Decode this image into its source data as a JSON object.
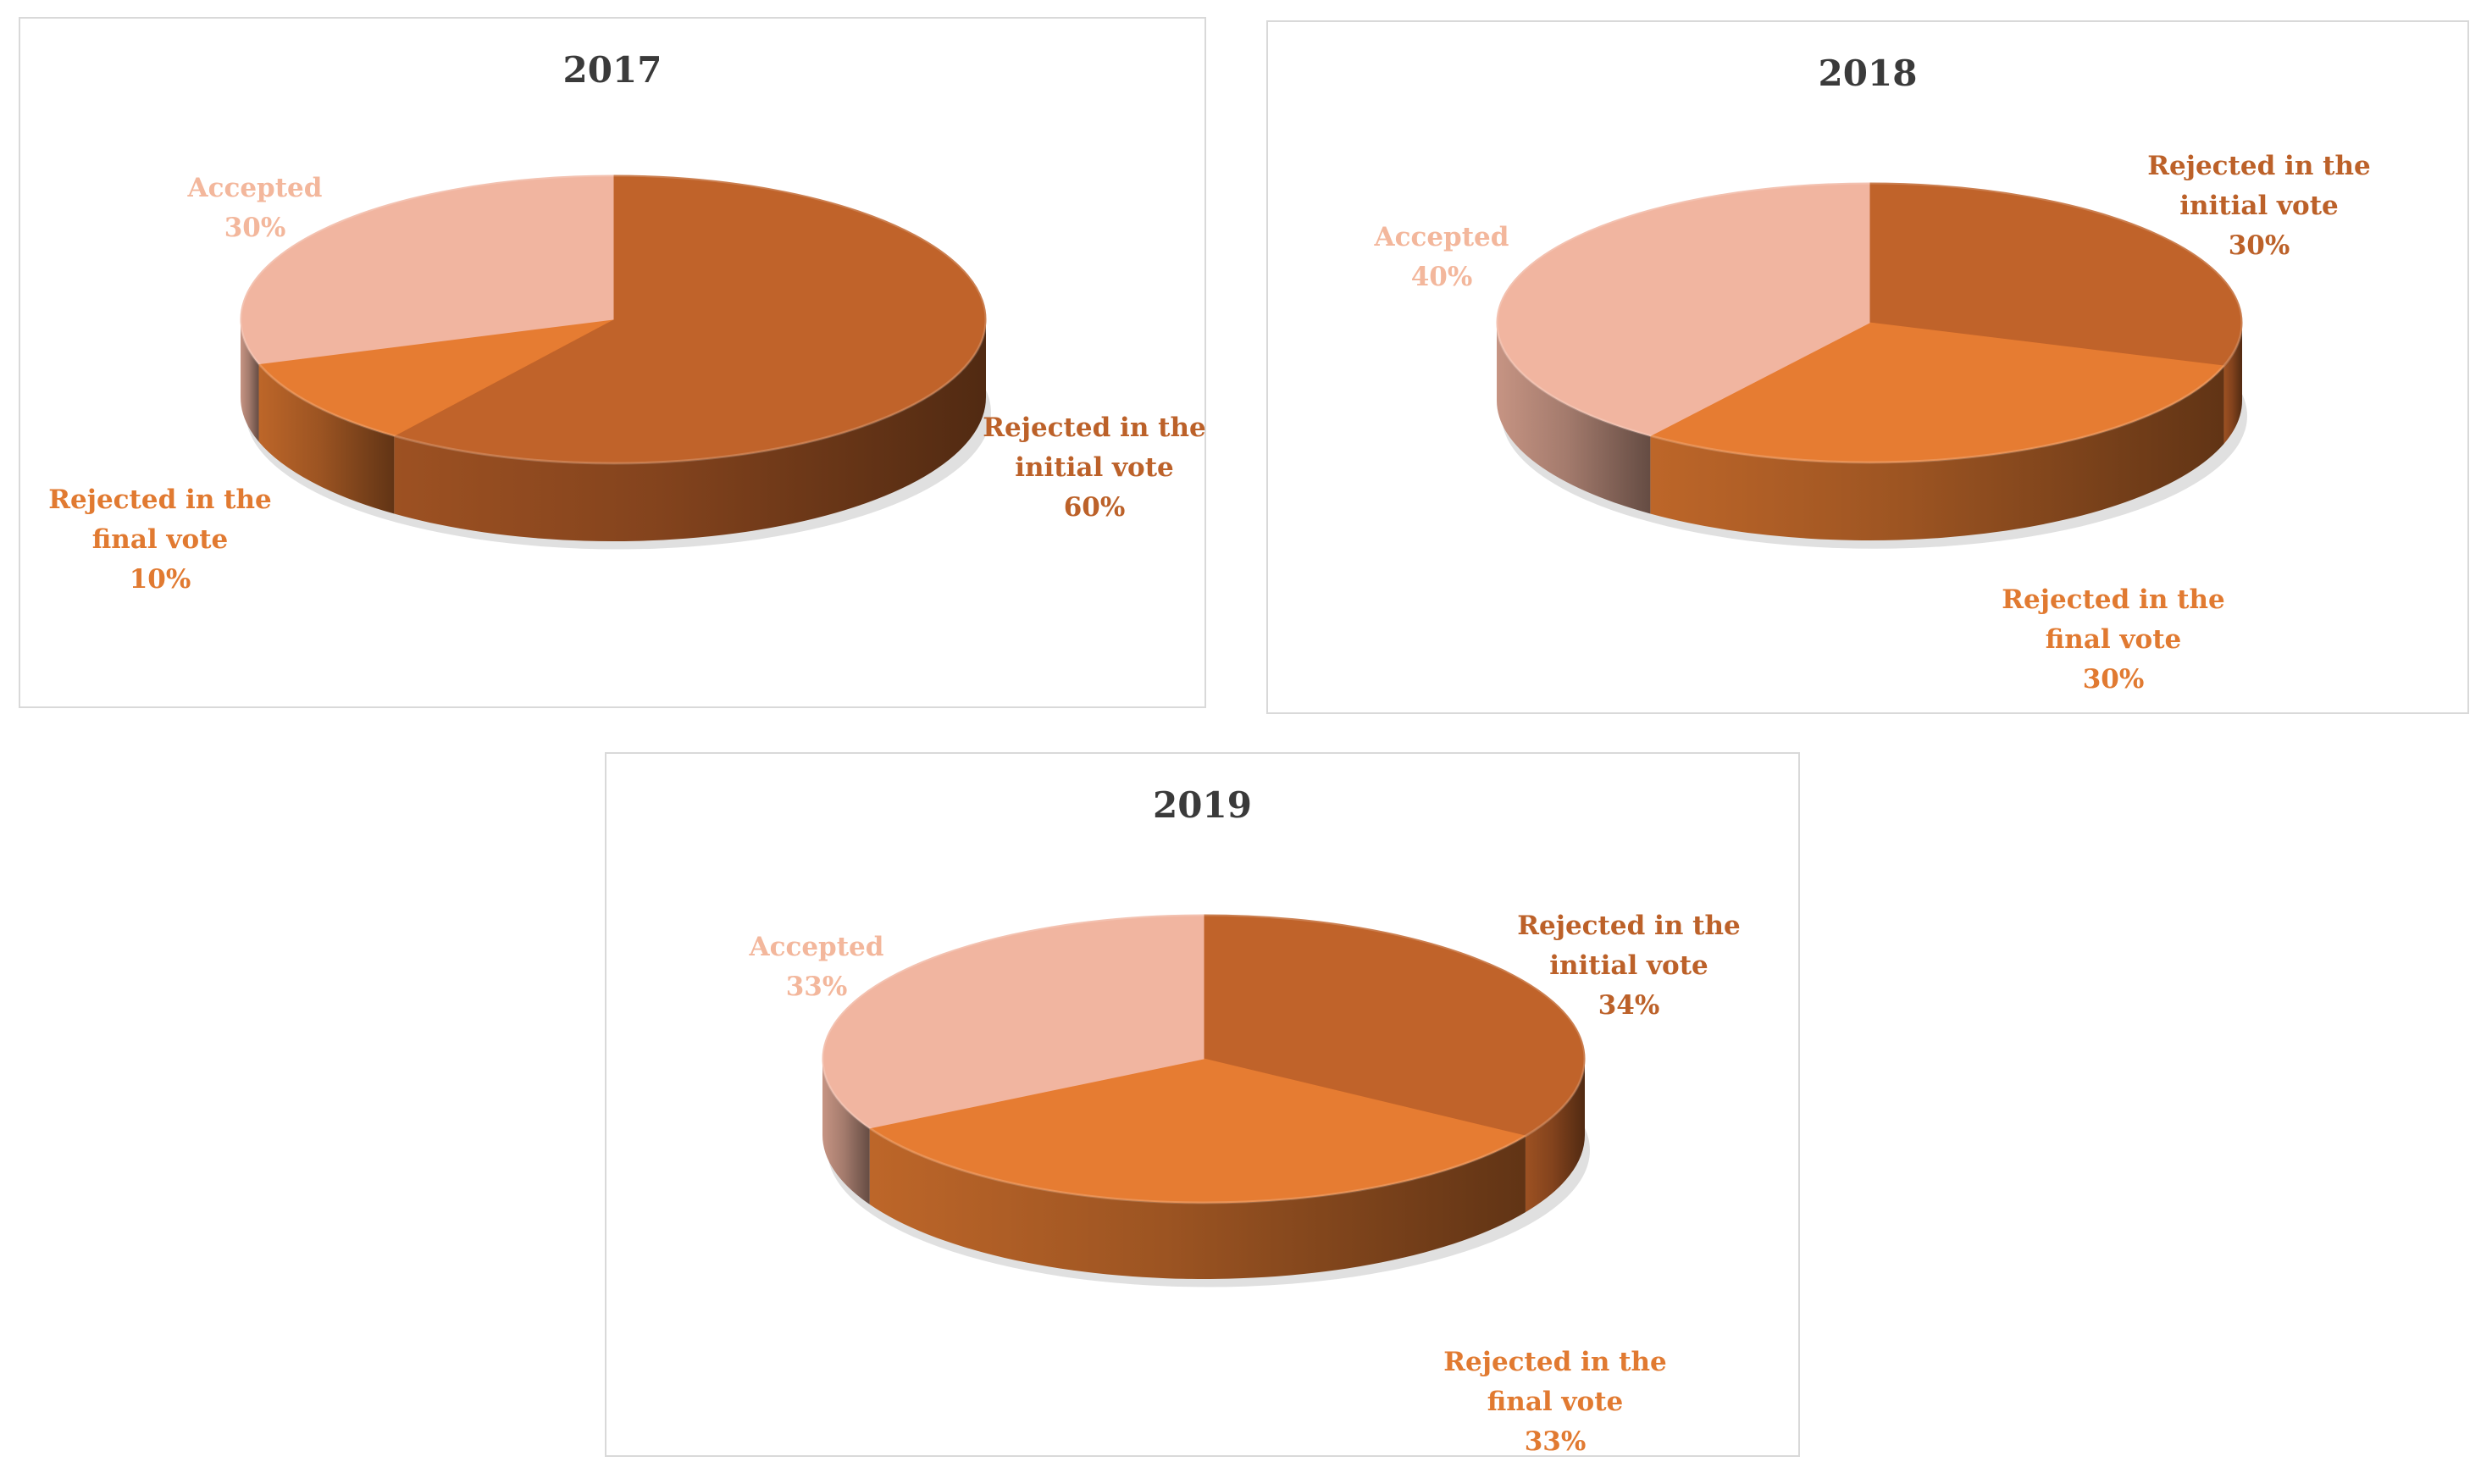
{
  "colors": {
    "rejected_initial": "#c0632a",
    "rejected_final": "#e67c32",
    "accepted": "#f1b5a0",
    "title": "#3a3a3a"
  },
  "chart_data": [
    {
      "type": "pie",
      "title": "2017",
      "style": "3d",
      "slices": [
        {
          "label": "Rejected in the initial vote",
          "lines": [
            "Rejected in the",
            "initial vote",
            "60%"
          ],
          "value": 60,
          "color": "#c0632a"
        },
        {
          "label": "Rejected in the final vote",
          "lines": [
            "Rejected in the",
            "final vote",
            "10%"
          ],
          "value": 10,
          "color": "#e67c32"
        },
        {
          "label": "Accepted",
          "lines": [
            "Accepted",
            "30%"
          ],
          "value": 30,
          "color": "#f1b5a0"
        }
      ]
    },
    {
      "type": "pie",
      "title": "2018",
      "style": "3d",
      "slices": [
        {
          "label": "Rejected in the initial vote",
          "lines": [
            "Rejected in the",
            "initial vote",
            "30%"
          ],
          "value": 30,
          "color": "#c0632a"
        },
        {
          "label": "Rejected in the final vote",
          "lines": [
            "Rejected in the",
            "final vote",
            "30%"
          ],
          "value": 30,
          "color": "#e67c32"
        },
        {
          "label": "Accepted",
          "lines": [
            "Accepted",
            "40%"
          ],
          "value": 40,
          "color": "#f1b5a0"
        }
      ]
    },
    {
      "type": "pie",
      "title": "2019",
      "style": "3d",
      "slices": [
        {
          "label": "Rejected in the initial vote",
          "lines": [
            "Rejected in the",
            "initial vote",
            "34%"
          ],
          "value": 34,
          "color": "#c0632a"
        },
        {
          "label": "Rejected in the final vote",
          "lines": [
            "Rejected in the",
            "final vote",
            "33%"
          ],
          "value": 33,
          "color": "#e67c32"
        },
        {
          "label": "Accepted",
          "lines": [
            "Accepted",
            "33%"
          ],
          "value": 33,
          "color": "#f1b5a0"
        }
      ]
    }
  ]
}
